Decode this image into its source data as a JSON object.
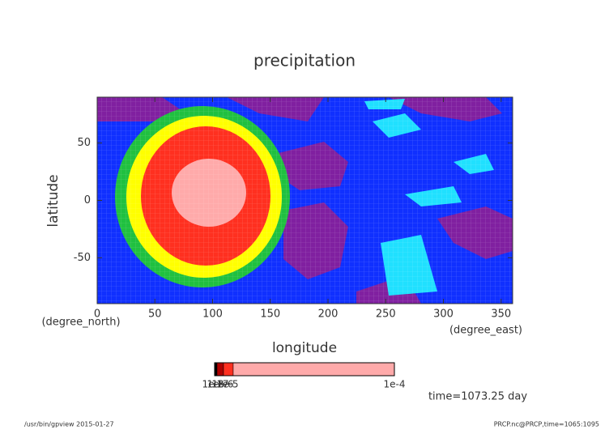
{
  "chart_data": {
    "type": "contour",
    "title": "precipitation",
    "xlabel": "longitude",
    "ylabel": "latitude",
    "xunits": "(degree_east)",
    "yunits": "(degree_north)",
    "xlim": [
      0,
      360
    ],
    "ylim": [
      -90,
      90
    ],
    "xticks": [
      0,
      50,
      100,
      150,
      200,
      250,
      300,
      350
    ],
    "yticks": [
      -50,
      0,
      50
    ],
    "colorbar": {
      "colors": [
        "#000000",
        "#b00000",
        "#ff3020",
        "#ffaaaa"
      ],
      "labels_left": [
        "1e-8",
        "1e-7",
        "1e-6",
        "1e-5"
      ],
      "label_right": "1e-4"
    },
    "annotation": "time=1073.25 day",
    "footer_left": "/usr/bin/gpview  2015-01-27",
    "footer_right": "PRCP.nc@PRCP,time=1065:1095"
  }
}
